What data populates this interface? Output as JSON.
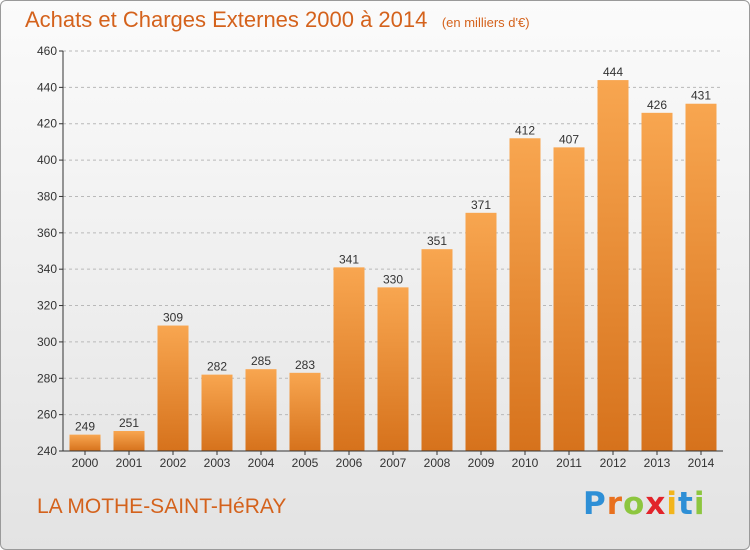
{
  "chart_data": {
    "type": "bar",
    "title": "Achats et Charges Externes 2000 à 2014",
    "unit_note": "(en milliers d'€)",
    "categories": [
      "2000",
      "2001",
      "2002",
      "2003",
      "2004",
      "2005",
      "2006",
      "2007",
      "2008",
      "2009",
      "2010",
      "2011",
      "2012",
      "2013",
      "2014"
    ],
    "values": [
      249,
      251,
      309,
      282,
      285,
      283,
      341,
      330,
      351,
      371,
      412,
      407,
      444,
      426,
      431
    ],
    "ylim": [
      240,
      460
    ],
    "yticks": [
      240,
      260,
      280,
      300,
      320,
      340,
      360,
      380,
      400,
      420,
      440,
      460
    ],
    "grid": "horizontal dashed",
    "bar_color_light": "#f8a650",
    "bar_color_dark": "#d6721c",
    "axis_color": "#333333"
  },
  "footer": {
    "commune": "LA MOTHE-SAINT-HéRAY"
  },
  "logo": {
    "text": "Proxiti",
    "letters": [
      {
        "char": "P",
        "color": "#2e8fd6"
      },
      {
        "char": "r",
        "color": "#e8701e"
      },
      {
        "char": "o",
        "color": "#8dc63f"
      },
      {
        "char": "x",
        "color": "#e2232a"
      },
      {
        "char": "i",
        "color": "#f2b51c"
      },
      {
        "char": "t",
        "color": "#2e8fd6"
      },
      {
        "char": "i",
        "color": "#8dc63f"
      }
    ]
  },
  "colors": {
    "title": "#d4621c",
    "frame_border": "#9a9a9a"
  }
}
